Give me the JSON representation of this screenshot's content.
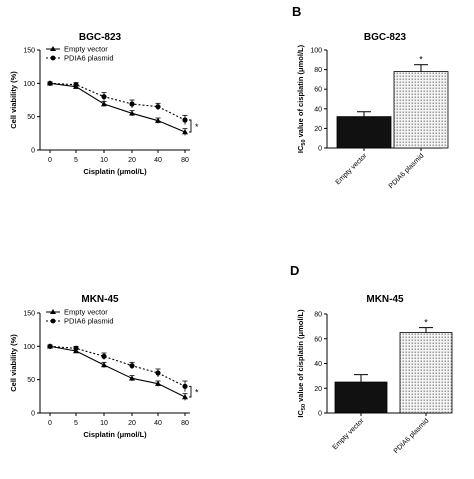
{
  "figure": {
    "panels": [
      {
        "letter": "",
        "title": "BGC-823"
      },
      {
        "letter": "B",
        "title": "BGC-823"
      },
      {
        "letter": "",
        "title": "MKN-45"
      },
      {
        "letter": "D",
        "title": "MKN-45"
      }
    ]
  },
  "chart_data": [
    {
      "type": "line",
      "title": "BGC-823",
      "xlabel": "Cisplatin (μmol/L)",
      "ylabel": "Cell viability (%)",
      "categories": [
        "0",
        "5",
        "10",
        "20",
        "40",
        "80"
      ],
      "ylim": [
        0,
        150
      ],
      "yticks": [
        0,
        50,
        100,
        150
      ],
      "series": [
        {
          "name": "Empty vector",
          "marker": "triangle",
          "line": "solid",
          "values": [
            100,
            95,
            69,
            55,
            44,
            27
          ],
          "errors": [
            2,
            3,
            4,
            4,
            4,
            5
          ]
        },
        {
          "name": "PDIA6 plasmid",
          "marker": "circle",
          "line": "dotted",
          "values": [
            100,
            98,
            80,
            69,
            65,
            45
          ],
          "errors": [
            2,
            3,
            6,
            6,
            5,
            7
          ]
        }
      ],
      "significance": "*",
      "legend": "top-right"
    },
    {
      "type": "bar",
      "title": "BGC-823",
      "ylabel": "IC50 value of cisplatin (μmol/L)",
      "ylabel_parts": {
        "main": "IC",
        "sub": "50",
        "rest": " value of cisplatin (μmol/L)"
      },
      "categories": [
        "Empty vector",
        "PDIA6 plasmid"
      ],
      "values": [
        32,
        78
      ],
      "errors": [
        5,
        7
      ],
      "patterns": [
        "solid",
        "dotted"
      ],
      "ylim": [
        0,
        100
      ],
      "yticks": [
        0,
        20,
        40,
        60,
        80,
        100
      ],
      "significance": "*"
    },
    {
      "type": "line",
      "title": "MKN-45",
      "xlabel": "Cisplatin (μmol/L)",
      "ylabel": "Cell viability (%)",
      "categories": [
        "0",
        "5",
        "10",
        "20",
        "40",
        "80"
      ],
      "ylim": [
        0,
        150
      ],
      "yticks": [
        0,
        50,
        100,
        150
      ],
      "series": [
        {
          "name": "Empty vector",
          "marker": "triangle",
          "line": "solid",
          "values": [
            100,
            93,
            72,
            52,
            44,
            24
          ],
          "errors": [
            2,
            3,
            4,
            4,
            4,
            5
          ]
        },
        {
          "name": "PDIA6 plasmid",
          "marker": "circle",
          "line": "dotted",
          "values": [
            100,
            97,
            85,
            71,
            60,
            40
          ],
          "errors": [
            2,
            3,
            5,
            5,
            6,
            8
          ]
        }
      ],
      "significance": "*",
      "legend": "top-right"
    },
    {
      "type": "bar",
      "title": "MKN-45",
      "ylabel": "IC50 value of cisplatin (μmol/L)",
      "ylabel_parts": {
        "main": "IC",
        "sub": "50",
        "rest": " value of cisplatin (μmol/L)"
      },
      "categories": [
        "Empty vector",
        "PDIA6 plasmid"
      ],
      "values": [
        25,
        65
      ],
      "errors": [
        6,
        4
      ],
      "patterns": [
        "solid",
        "dotted"
      ],
      "ylim": [
        0,
        80
      ],
      "yticks": [
        0,
        20,
        40,
        60,
        80
      ],
      "significance": "*"
    }
  ]
}
